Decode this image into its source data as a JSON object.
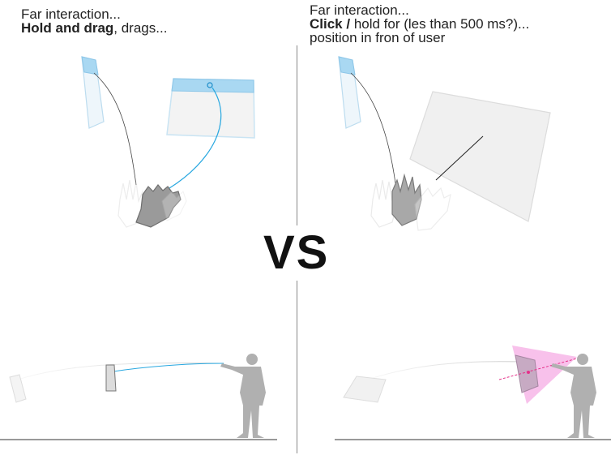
{
  "left_panel": {
    "caption_line1": "Far interaction...",
    "caption_bold": "Hold and drag",
    "caption_rest": ", drags..."
  },
  "right_panel": {
    "caption_line1": "Far interaction...",
    "caption_bold": "Click /",
    "caption_rest": " hold for (les than 500 ms?)...",
    "caption_line3": "position in fron of user"
  },
  "vs_label": "VS",
  "colors": {
    "accent_blue": "#29a8e0",
    "panel_blue": "#a9d8f2",
    "panel_fill": "#f0f0f0",
    "hand_gray": "#9a9a9a",
    "person_gray": "#b0b0b0",
    "cone_pink": "#f7b6e8",
    "ray_pink": "#e5308a",
    "divider": "#888888"
  },
  "icons": {
    "hand_grab": "hand-grab-icon",
    "hand_open": "hand-open-icon",
    "person": "person-pointing-icon"
  }
}
